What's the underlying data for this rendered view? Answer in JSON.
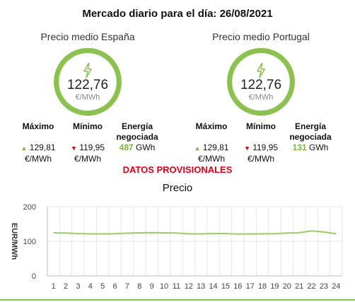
{
  "header": {
    "title": "Mercado diario para el día: 26/08/2021"
  },
  "markets": [
    {
      "title": "Precio medio España",
      "price": "122,76",
      "unit": "€/MWh",
      "max_label": "Máximo",
      "max_value": "129,81",
      "max_unit": "€/MWh",
      "min_label": "Mínimo",
      "min_value": "119,95",
      "min_unit": "€/MWh",
      "energy_label": "Energía negociada",
      "energy_value": "487",
      "energy_unit": "GWh"
    },
    {
      "title": "Precio medio Portugal",
      "price": "122,76",
      "unit": "€/MWh",
      "max_label": "Máximo",
      "max_value": "129,81",
      "max_unit": "€/MWh",
      "min_label": "Mínimo",
      "min_value": "119,95",
      "min_unit": "€/MWh",
      "energy_label": "Energía negociada",
      "energy_value": "131",
      "energy_unit": "GWh"
    }
  ],
  "status": {
    "provisional": "DATOS PROVISIONALES"
  },
  "colors": {
    "accent": "#8dc14f",
    "up": "#7cb342",
    "down": "#d0021b",
    "line": "#9ccc65"
  },
  "icons": {
    "gauge": "lightning-bolt-icon"
  },
  "chart_data": {
    "type": "line",
    "title": "Precio",
    "ylabel": "EUR/MWh",
    "xlabel": "",
    "ylim": [
      0,
      200
    ],
    "yticks": [
      0,
      100,
      200
    ],
    "x": [
      1,
      2,
      3,
      4,
      5,
      6,
      7,
      8,
      9,
      10,
      11,
      12,
      13,
      14,
      15,
      16,
      17,
      18,
      19,
      20,
      21,
      22,
      23,
      24
    ],
    "grid": true,
    "series": [
      {
        "values": [
          124.5,
          124,
          122.5,
          121.5,
          121.5,
          122,
          123.5,
          124.5,
          125,
          124.5,
          124,
          121.5,
          121.5,
          122.5,
          122.5,
          121,
          121.5,
          121.5,
          122,
          124,
          125,
          130,
          127,
          122
        ]
      }
    ]
  }
}
